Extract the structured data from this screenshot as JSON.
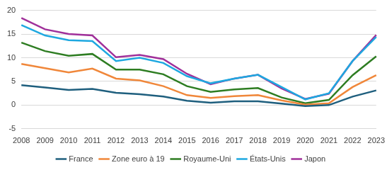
{
  "chart_data": {
    "type": "line",
    "categories": [
      "2008",
      "2009",
      "2010",
      "2011",
      "2012",
      "2013",
      "2014",
      "2015",
      "2016",
      "2017",
      "2018",
      "2019",
      "2020",
      "2021",
      "2022",
      "2023"
    ],
    "series": [
      {
        "name": "France",
        "color": "#1f5f7e",
        "values": [
          4.2,
          3.7,
          3.2,
          3.4,
          2.6,
          2.3,
          1.8,
          0.9,
          0.5,
          0.8,
          0.8,
          0.3,
          -0.2,
          0.0,
          1.8,
          3.1
        ]
      },
      {
        "name": "Zone euro à 19",
        "color": "#f0873a",
        "values": [
          8.7,
          7.8,
          6.9,
          7.7,
          5.6,
          5.2,
          4.0,
          2.1,
          1.5,
          1.9,
          2.1,
          1.0,
          0.1,
          0.4,
          3.8,
          6.3
        ]
      },
      {
        "name": "Royaume-Uni",
        "color": "#2e7d22",
        "values": [
          13.2,
          11.4,
          10.4,
          10.8,
          7.5,
          7.5,
          6.5,
          4.0,
          2.8,
          3.3,
          3.6,
          1.6,
          0.4,
          1.1,
          6.3,
          10.3
        ]
      },
      {
        "name": "États-Unis",
        "color": "#1ea8e0",
        "values": [
          16.9,
          14.7,
          13.7,
          13.5,
          9.3,
          10.0,
          8.9,
          6.1,
          4.6,
          5.6,
          6.4,
          3.8,
          1.2,
          2.5,
          9.3,
          14.4
        ]
      },
      {
        "name": "Japon",
        "color": "#a0309a",
        "values": [
          18.4,
          16.0,
          15.0,
          14.7,
          10.1,
          10.6,
          9.7,
          6.6,
          4.4,
          5.6,
          6.4,
          3.5,
          1.3,
          2.4,
          9.3,
          14.8
        ]
      }
    ],
    "ylim": [
      -5,
      20
    ],
    "yticks": [
      -5,
      0,
      5,
      10,
      15,
      20
    ],
    "grid": true,
    "legend": "bottom"
  }
}
